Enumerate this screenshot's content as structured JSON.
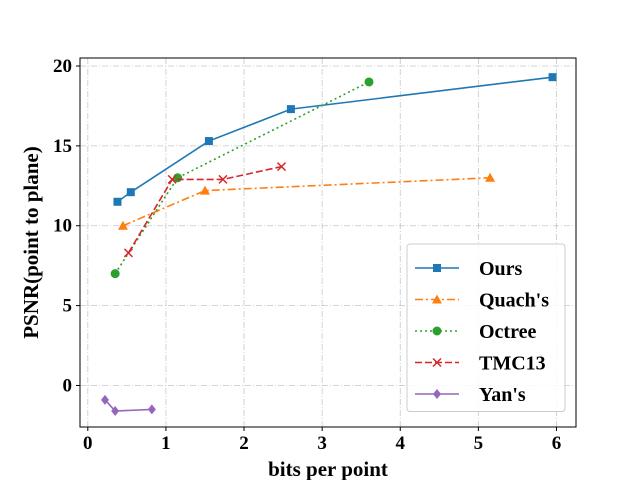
{
  "chart_data": {
    "type": "line",
    "title": "",
    "xlabel": "bits per point",
    "ylabel": "PSNR(point to plane)",
    "xlim": [
      -0.1,
      6.25
    ],
    "ylim": [
      -2.6,
      20.5
    ],
    "xticks": [
      0,
      1,
      2,
      3,
      4,
      5,
      6
    ],
    "xtick_labels": [
      "0",
      "1",
      "2",
      "3",
      "4",
      "5",
      "6"
    ],
    "yticks": [
      0,
      5,
      10,
      15,
      20
    ],
    "ytick_labels": [
      "0",
      "5",
      "10",
      "15",
      "20"
    ],
    "grid": true,
    "legend_position": "lower-right",
    "series": [
      {
        "name": "Ours",
        "color": "#1f77b4",
        "linestyle": "solid",
        "marker": "square",
        "x": [
          0.38,
          0.55,
          1.55,
          2.6,
          5.95
        ],
        "y": [
          11.5,
          12.1,
          15.3,
          17.3,
          19.3
        ]
      },
      {
        "name": "Quach's",
        "color": "#ff7f0e",
        "linestyle": "dashdot",
        "marker": "triangle",
        "x": [
          0.45,
          1.5,
          5.15
        ],
        "y": [
          10.0,
          12.2,
          13.0
        ]
      },
      {
        "name": "Octree",
        "color": "#2ca02c",
        "linestyle": "dotted",
        "marker": "circle",
        "x": [
          0.35,
          1.15,
          3.6
        ],
        "y": [
          7.0,
          13.0,
          19.0
        ]
      },
      {
        "name": "TMC13",
        "color": "#d62728",
        "linestyle": "dashed",
        "marker": "x",
        "x": [
          0.52,
          1.08,
          1.73,
          2.48
        ],
        "y": [
          8.3,
          12.9,
          12.9,
          13.7
        ]
      },
      {
        "name": "Yan's",
        "color": "#9467bd",
        "linestyle": "solid",
        "marker": "diamond",
        "x": [
          0.22,
          0.35,
          0.82
        ],
        "y": [
          -0.9,
          -1.6,
          -1.5
        ]
      }
    ]
  }
}
